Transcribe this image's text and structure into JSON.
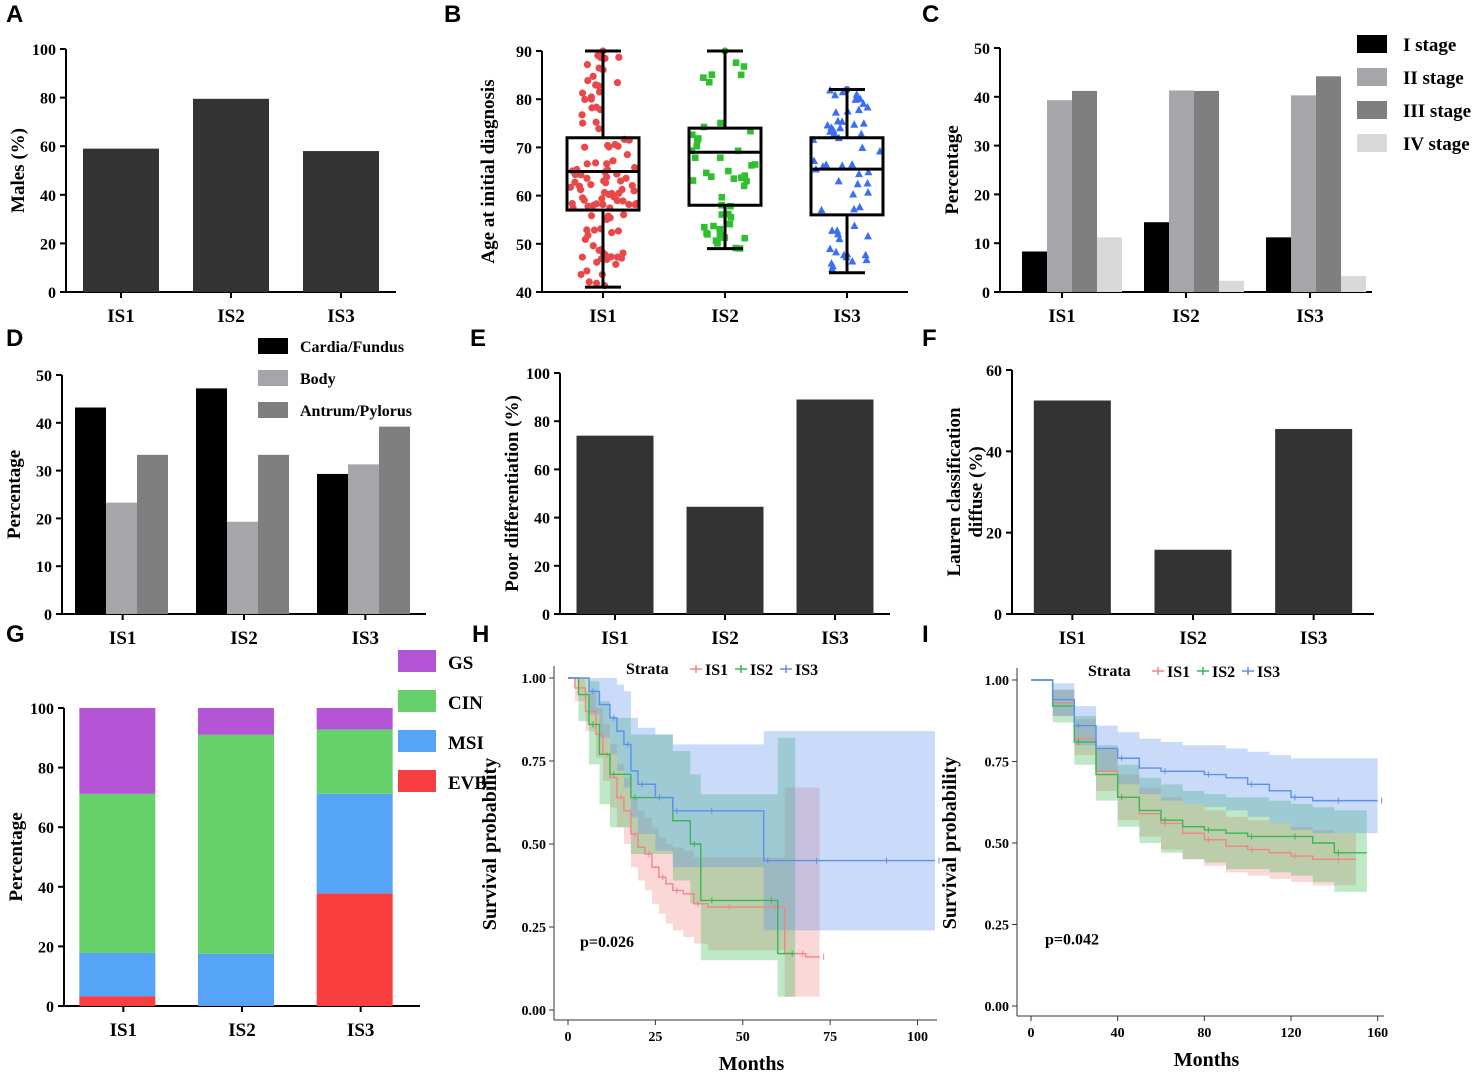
{
  "colors": {
    "dark_bar": "#333333",
    "stage_I": "#000000",
    "stage_II": "#a6a6aa",
    "stage_III": "#7f7f7f",
    "stage_IV": "#d9d9d9",
    "loc_cardia": "#000000",
    "loc_body": "#a6a6aa",
    "loc_antrum": "#7f7f7f",
    "GS": "#b455d6",
    "CIN": "#66d16b",
    "MSI": "#55a4f8",
    "EVB": "#f83e3e",
    "IS1": "#e8484a",
    "IS2": "#2ec02e",
    "IS3": "#3a6ff5",
    "km_IS1": "#f28585",
    "km_IS2": "#38b84f",
    "km_IS3": "#5b8ff0"
  },
  "chart_data": [
    {
      "panel": "A",
      "type": "bar",
      "categories": [
        "IS1",
        "IS2",
        "IS3"
      ],
      "values": [
        59,
        79.5,
        58
      ],
      "ylabel": "Males (%)",
      "ylim": [
        0,
        100
      ],
      "yticks": [
        "0",
        "20",
        "40",
        "60",
        "80",
        "100"
      ]
    },
    {
      "panel": "B",
      "type": "box-scatter",
      "categories": [
        "IS1",
        "IS2",
        "IS3"
      ],
      "ylabel": "Age at initial diagnosis",
      "ylim": [
        40,
        90
      ],
      "yticks": [
        "40",
        "50",
        "60",
        "70",
        "80",
        "90"
      ],
      "boxes": [
        {
          "min": 41,
          "q1": 57,
          "median": 65,
          "q3": 72,
          "max": 90
        },
        {
          "min": 49,
          "q1": 58,
          "median": 69,
          "q3": 74,
          "max": 90
        },
        {
          "min": 44,
          "q1": 56,
          "median": 65.5,
          "q3": 72,
          "max": 82
        }
      ],
      "markers": [
        "circle",
        "square",
        "triangle"
      ]
    },
    {
      "panel": "C",
      "type": "bar",
      "categories": [
        "IS1",
        "IS2",
        "IS3"
      ],
      "ylabel": "Percentage",
      "ylim": [
        0,
        50
      ],
      "yticks": [
        "0",
        "10",
        "20",
        "30",
        "40",
        "50"
      ],
      "series": [
        {
          "name": "I stage",
          "values": [
            8.3,
            14.3,
            11.2
          ]
        },
        {
          "name": "II stage",
          "values": [
            39.3,
            41.3,
            40.3
          ]
        },
        {
          "name": "III stage",
          "values": [
            41.2,
            41.2,
            44.2
          ]
        },
        {
          "name": "IV stage",
          "values": [
            11.2,
            2.3,
            3.3
          ]
        }
      ],
      "legend": "top-right"
    },
    {
      "panel": "D",
      "type": "bar",
      "categories": [
        "IS1",
        "IS2",
        "IS3"
      ],
      "ylabel": "Percentage",
      "ylim": [
        0,
        50
      ],
      "yticks": [
        "0",
        "10",
        "20",
        "30",
        "40",
        "50"
      ],
      "series": [
        {
          "name": "Cardia/Fundus",
          "values": [
            43.2,
            47.2,
            29.3
          ]
        },
        {
          "name": "Body",
          "values": [
            23.3,
            19.3,
            31.3
          ]
        },
        {
          "name": "Antrum/Pylorus",
          "values": [
            33.3,
            33.3,
            39.2
          ]
        }
      ],
      "legend": "top-right"
    },
    {
      "panel": "E",
      "type": "bar",
      "categories": [
        "IS1",
        "IS2",
        "IS3"
      ],
      "values": [
        74,
        44.5,
        89
      ],
      "ylabel": "Poor differentiation (%)",
      "ylim": [
        0,
        100
      ],
      "yticks": [
        "0",
        "20",
        "40",
        "60",
        "80",
        "100"
      ]
    },
    {
      "panel": "F",
      "type": "bar",
      "categories": [
        "IS1",
        "IS2",
        "IS3"
      ],
      "values": [
        52.5,
        15.8,
        45.5
      ],
      "ylabel_lines": [
        "Lauren classification",
        "diffuse (%)"
      ],
      "ylim": [
        0,
        60
      ],
      "yticks": [
        "0",
        "20",
        "40",
        "60"
      ]
    },
    {
      "panel": "G",
      "type": "stacked-bar",
      "categories": [
        "IS1",
        "IS2",
        "IS3"
      ],
      "ylabel": "Percentage",
      "ylim": [
        0,
        100
      ],
      "yticks": [
        "0",
        "20",
        "40",
        "60",
        "80",
        "100"
      ],
      "series": [
        {
          "name": "EVB",
          "values": [
            3.3,
            0,
            37.8
          ]
        },
        {
          "name": "MSI",
          "values": [
            14.5,
            17.5,
            33.4
          ]
        },
        {
          "name": "CIN",
          "values": [
            53.4,
            73.5,
            21.6
          ]
        },
        {
          "name": "GS",
          "values": [
            28.8,
            9,
            7.2
          ]
        }
      ],
      "legend_order": [
        "GS",
        "CIN",
        "MSI",
        "EVB"
      ]
    },
    {
      "panel": "H",
      "type": "line",
      "xlabel": "Months",
      "ylabel": "Survival probability",
      "xlim": [
        0,
        105
      ],
      "ylim": [
        0,
        1
      ],
      "xticks": [
        "0",
        "25",
        "50",
        "75",
        "100"
      ],
      "yticks": [
        "0.00",
        "0.25",
        "0.50",
        "0.75",
        "1.00"
      ],
      "legend_title": "Strata",
      "legend": [
        "IS1",
        "IS2",
        "IS3"
      ],
      "pvalue": "p=0.026",
      "series": [
        {
          "name": "IS1",
          "x": [
            0,
            2,
            5,
            8,
            10,
            12,
            14,
            16,
            18,
            20,
            22,
            24,
            26,
            28,
            30,
            33,
            36,
            40,
            45,
            55,
            58,
            62,
            66,
            68,
            72
          ],
          "y": [
            1,
            0.97,
            0.9,
            0.83,
            0.77,
            0.7,
            0.64,
            0.6,
            0.53,
            0.49,
            0.47,
            0.43,
            0.4,
            0.38,
            0.36,
            0.35,
            0.32,
            0.31,
            0.31,
            0.31,
            0.31,
            0.17,
            0.17,
            0.16,
            0.16
          ],
          "lower": [
            1,
            0.93,
            0.84,
            0.76,
            0.69,
            0.61,
            0.55,
            0.5,
            0.43,
            0.39,
            0.36,
            0.32,
            0.29,
            0.26,
            0.24,
            0.22,
            0.2,
            0.18,
            0.18,
            0.18,
            0.18,
            0.04,
            0.04,
            0.04,
            0.04
          ],
          "upper": [
            1,
            1,
            0.96,
            0.91,
            0.86,
            0.8,
            0.74,
            0.7,
            0.64,
            0.6,
            0.58,
            0.55,
            0.52,
            0.5,
            0.49,
            0.48,
            0.46,
            0.46,
            0.46,
            0.46,
            0.46,
            0.67,
            0.67,
            0.67,
            0.67
          ]
        },
        {
          "name": "IS2",
          "x": [
            0,
            3,
            6,
            9,
            12,
            15,
            18,
            20,
            25,
            30,
            35,
            38,
            40,
            50,
            57,
            60,
            63,
            65
          ],
          "y": [
            1,
            0.95,
            0.86,
            0.77,
            0.71,
            0.71,
            0.64,
            0.64,
            0.64,
            0.57,
            0.5,
            0.33,
            0.33,
            0.33,
            0.33,
            0.17,
            0.17,
            0.17
          ],
          "lower": [
            1,
            0.87,
            0.74,
            0.62,
            0.55,
            0.55,
            0.47,
            0.47,
            0.47,
            0.39,
            0.32,
            0.15,
            0.15,
            0.15,
            0.15,
            0.04,
            0.04,
            0.04
          ],
          "upper": [
            1,
            1,
            0.99,
            0.93,
            0.88,
            0.88,
            0.83,
            0.83,
            0.83,
            0.78,
            0.71,
            0.65,
            0.65,
            0.65,
            0.65,
            0.82,
            0.82,
            0.82
          ]
        },
        {
          "name": "IS3",
          "x": [
            0,
            3,
            6,
            9,
            12,
            14,
            16,
            18,
            20,
            25,
            30,
            35,
            40,
            50,
            56,
            60,
            70,
            80,
            90,
            100,
            105
          ],
          "y": [
            1,
            1,
            0.96,
            0.92,
            0.88,
            0.84,
            0.8,
            0.72,
            0.68,
            0.64,
            0.6,
            0.6,
            0.6,
            0.6,
            0.45,
            0.45,
            0.45,
            0.45,
            0.45,
            0.45,
            0.45
          ],
          "lower": [
            1,
            1,
            0.89,
            0.82,
            0.77,
            0.72,
            0.67,
            0.58,
            0.53,
            0.48,
            0.43,
            0.43,
            0.43,
            0.43,
            0.24,
            0.24,
            0.24,
            0.24,
            0.24,
            0.24,
            0.24
          ],
          "upper": [
            1,
            1,
            1,
            1,
            1,
            0.98,
            0.96,
            0.88,
            0.85,
            0.83,
            0.8,
            0.8,
            0.8,
            0.8,
            0.84,
            0.84,
            0.84,
            0.84,
            0.84,
            0.84,
            0.84
          ]
        }
      ]
    },
    {
      "panel": "I",
      "type": "line",
      "xlabel": "Months",
      "ylabel": "Survival probability",
      "xlim": [
        0,
        162
      ],
      "ylim": [
        0,
        1
      ],
      "xticks": [
        "0",
        "40",
        "80",
        "120",
        "160"
      ],
      "yticks": [
        "0.00",
        "0.25",
        "0.50",
        "0.75",
        "1.00"
      ],
      "legend_title": "Strata",
      "legend": [
        "IS1",
        "IS2",
        "IS3"
      ],
      "pvalue": "p=0.042",
      "series": [
        {
          "name": "IS1",
          "x": [
            0,
            10,
            20,
            30,
            40,
            50,
            60,
            70,
            80,
            90,
            100,
            110,
            120,
            130,
            140,
            150
          ],
          "y": [
            1,
            0.93,
            0.82,
            0.72,
            0.64,
            0.59,
            0.56,
            0.53,
            0.51,
            0.49,
            0.48,
            0.47,
            0.46,
            0.45,
            0.45,
            0.45
          ],
          "lower": [
            1,
            0.89,
            0.77,
            0.66,
            0.57,
            0.52,
            0.48,
            0.45,
            0.43,
            0.41,
            0.4,
            0.39,
            0.38,
            0.37,
            0.37,
            0.37
          ],
          "upper": [
            1,
            0.97,
            0.88,
            0.79,
            0.71,
            0.67,
            0.64,
            0.62,
            0.6,
            0.58,
            0.57,
            0.56,
            0.55,
            0.54,
            0.53,
            0.53
          ]
        },
        {
          "name": "IS2",
          "x": [
            0,
            10,
            20,
            30,
            40,
            50,
            60,
            70,
            80,
            90,
            100,
            110,
            120,
            130,
            140,
            155
          ],
          "y": [
            1,
            0.92,
            0.81,
            0.71,
            0.64,
            0.6,
            0.57,
            0.55,
            0.54,
            0.53,
            0.52,
            0.52,
            0.52,
            0.5,
            0.47,
            0.47
          ],
          "lower": [
            1,
            0.87,
            0.74,
            0.63,
            0.55,
            0.5,
            0.47,
            0.45,
            0.44,
            0.42,
            0.42,
            0.41,
            0.4,
            0.38,
            0.35,
            0.35
          ],
          "upper": [
            1,
            0.97,
            0.89,
            0.8,
            0.74,
            0.7,
            0.68,
            0.66,
            0.65,
            0.64,
            0.64,
            0.63,
            0.62,
            0.61,
            0.6,
            0.6
          ]
        },
        {
          "name": "IS3",
          "x": [
            0,
            10,
            20,
            30,
            40,
            50,
            60,
            70,
            80,
            90,
            100,
            110,
            120,
            130,
            140,
            150,
            160
          ],
          "y": [
            1,
            0.94,
            0.86,
            0.79,
            0.76,
            0.73,
            0.72,
            0.72,
            0.71,
            0.7,
            0.68,
            0.66,
            0.64,
            0.63,
            0.63,
            0.63,
            0.63
          ],
          "lower": [
            1,
            0.89,
            0.8,
            0.72,
            0.68,
            0.65,
            0.63,
            0.62,
            0.61,
            0.6,
            0.58,
            0.56,
            0.54,
            0.53,
            0.53,
            0.53,
            0.53
          ],
          "upper": [
            1,
            0.99,
            0.92,
            0.86,
            0.84,
            0.82,
            0.81,
            0.8,
            0.8,
            0.79,
            0.78,
            0.77,
            0.76,
            0.76,
            0.76,
            0.76,
            0.76
          ]
        }
      ]
    }
  ]
}
